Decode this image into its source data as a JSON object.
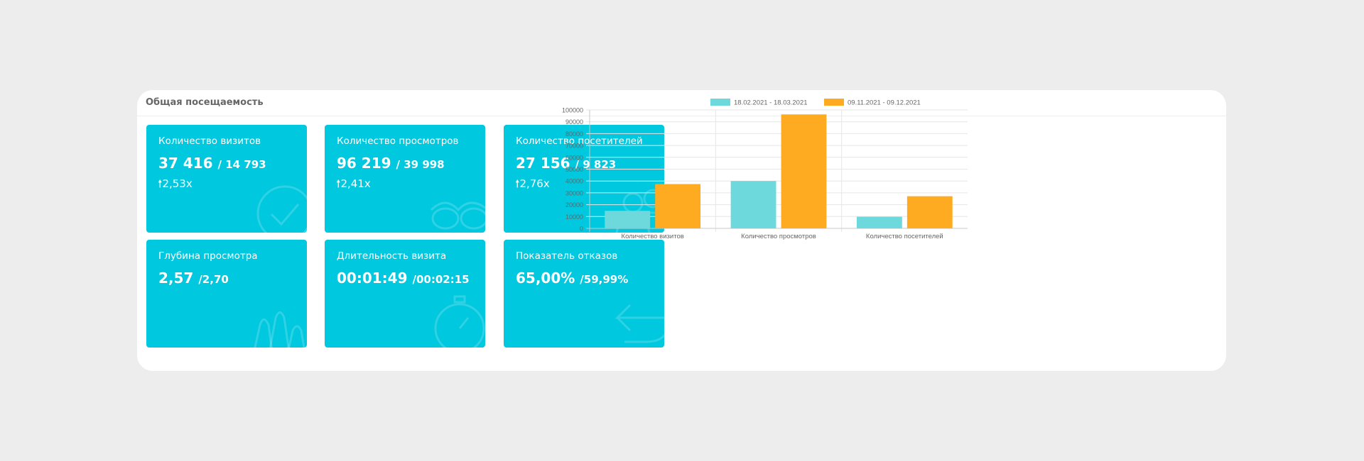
{
  "panel": {
    "title": "Общая посещаемость"
  },
  "cards": [
    {
      "label": "Количество визитов",
      "value": "37 416",
      "prev": "/ 14 793",
      "growth": "2,53x",
      "icon": "checkmark-icon"
    },
    {
      "label": "Количество просмотров",
      "value": "96 219",
      "prev": "/ 39 998",
      "growth": "2,41x",
      "icon": "glasses-icon"
    },
    {
      "label": "Количество посетителей",
      "value": "27 156",
      "prev": "/ 9 823",
      "growth": "2,76x",
      "icon": "users-icon"
    },
    {
      "label": "Глубина просмотра",
      "value": "2,57",
      "prev": "/2,70",
      "growth": "",
      "icon": "chart-icon"
    },
    {
      "label": "Длительность визита",
      "value": "00:01:49",
      "prev": "/00:02:15",
      "growth": "",
      "icon": "stopwatch-icon"
    },
    {
      "label": "Показатель отказов",
      "value": "65,00%",
      "prev": "/59,99%",
      "growth": "",
      "icon": "return-arrow-icon"
    }
  ],
  "colors": {
    "card": "#00c8df",
    "series_1": "#6dd9dd",
    "series_2": "#ffab22"
  },
  "chart_data": {
    "type": "bar",
    "categories": [
      "Количество визитов",
      "Количество просмотров",
      "Количество посетителей"
    ],
    "series": [
      {
        "name": "18.02.2021 - 18.03.2021",
        "values": [
          14793,
          39998,
          9823
        ],
        "color": "#6dd9dd"
      },
      {
        "name": "09.11.2021 - 09.12.2021",
        "values": [
          37416,
          96219,
          27156
        ],
        "color": "#ffab22"
      }
    ],
    "yticks": [
      0,
      10000,
      20000,
      30000,
      40000,
      50000,
      60000,
      70000,
      80000,
      90000,
      100000
    ],
    "ylim": [
      0,
      100000
    ],
    "grid": true,
    "legend_position": "top"
  }
}
